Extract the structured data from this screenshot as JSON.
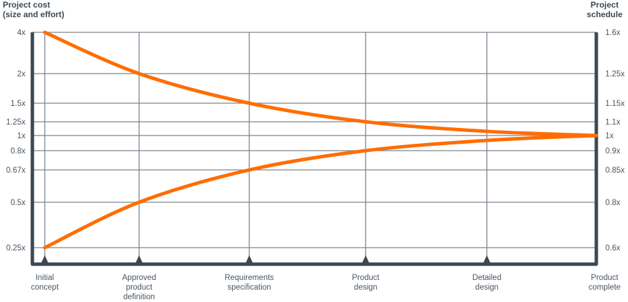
{
  "chart_data": {
    "type": "line",
    "left_axis_title": [
      "Project cost",
      "(size and effort)"
    ],
    "right_axis_title": [
      "Project",
      "schedule"
    ],
    "categories": [
      [
        "Initial",
        "concept"
      ],
      [
        "Approved",
        "product",
        "definition"
      ],
      [
        "Requirements",
        "specification"
      ],
      [
        "Product",
        "design"
      ],
      [
        "Detailed",
        "design"
      ],
      [
        "Product",
        "complete"
      ]
    ],
    "left_ticks": [
      4,
      2,
      1.5,
      1.25,
      1,
      0.8,
      0.67,
      0.5,
      0.25
    ],
    "left_tick_labels": [
      "4x",
      "2x",
      "1.5x",
      "1.25x",
      "1x",
      "0.8x",
      "0.67x",
      "0.5x",
      "0.25x"
    ],
    "right_tick_labels": [
      "1.6x",
      "1.25x",
      "1.15x",
      "1.1x",
      "1x",
      "0.9x",
      "0.85x",
      "0.8x",
      "0.6x"
    ],
    "series": [
      {
        "values": [
          4,
          2,
          1.5,
          1.25,
          1.07,
          1
        ]
      },
      {
        "values": [
          0.25,
          0.5,
          0.67,
          0.8,
          0.93,
          1
        ]
      }
    ],
    "ylim": [
      0.25,
      4
    ],
    "grid": true,
    "colors": {
      "line": "#ff6d00",
      "axis": "#3d4852",
      "grid": "#7a838c"
    }
  }
}
